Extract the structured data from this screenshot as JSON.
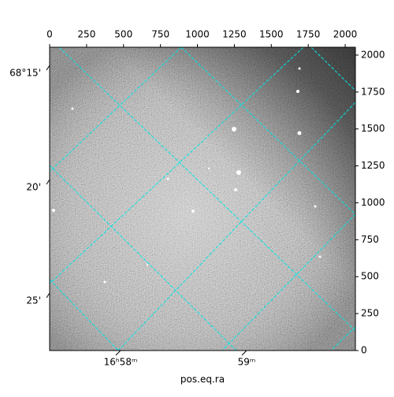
{
  "chart_data": {
    "type": "image",
    "xlabel": "pos.eq.ra",
    "xlim": [
      0,
      2069
    ],
    "xticks": [
      0,
      250,
      500,
      750,
      1000,
      1250,
      1500,
      1750,
      2000
    ],
    "ylim": [
      0,
      2053
    ],
    "yticks": [
      0,
      250,
      500,
      750,
      1000,
      1250,
      1500,
      1750,
      2000
    ],
    "ra_tick_labels": [
      "16ʰ58ᵐ",
      "59ᵐ"
    ],
    "dec_tick_labels": [
      "68°15'",
      "20'",
      "25'"
    ],
    "grid": true,
    "grid_color": "#00e5e5"
  }
}
